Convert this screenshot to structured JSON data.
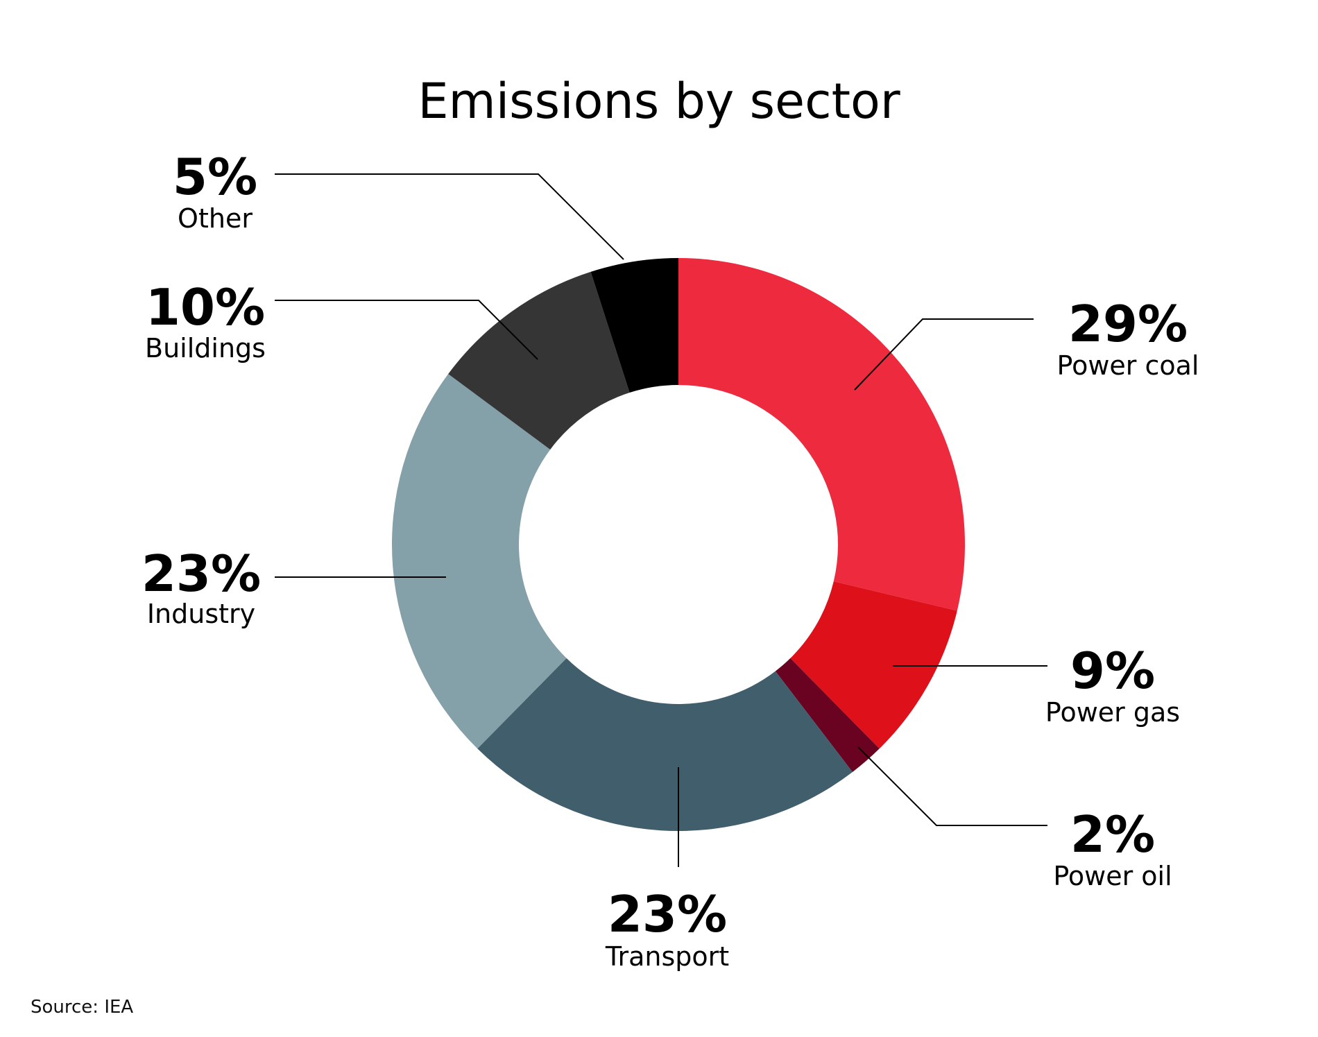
{
  "chart_data": {
    "type": "pie",
    "title": "Emissions by sector",
    "source": "Source: IEA",
    "slices": [
      {
        "name": "Power coal",
        "value": 29,
        "label": "29%",
        "color": "#ee2a3f"
      },
      {
        "name": "Power gas",
        "value": 9,
        "label": "9%",
        "color": "#de1019"
      },
      {
        "name": "Power oil",
        "value": 2,
        "label": "2%",
        "color": "#6a0222"
      },
      {
        "name": "Transport",
        "value": 23,
        "label": "23%",
        "color": "#405e6b"
      },
      {
        "name": "Industry",
        "value": 23,
        "label": "23%",
        "color": "#84a0a8"
      },
      {
        "name": "Buildings",
        "value": 10,
        "label": "10%",
        "color": "#353535"
      },
      {
        "name": "Other",
        "value": 5,
        "label": "5%",
        "color": "#000000"
      }
    ]
  }
}
